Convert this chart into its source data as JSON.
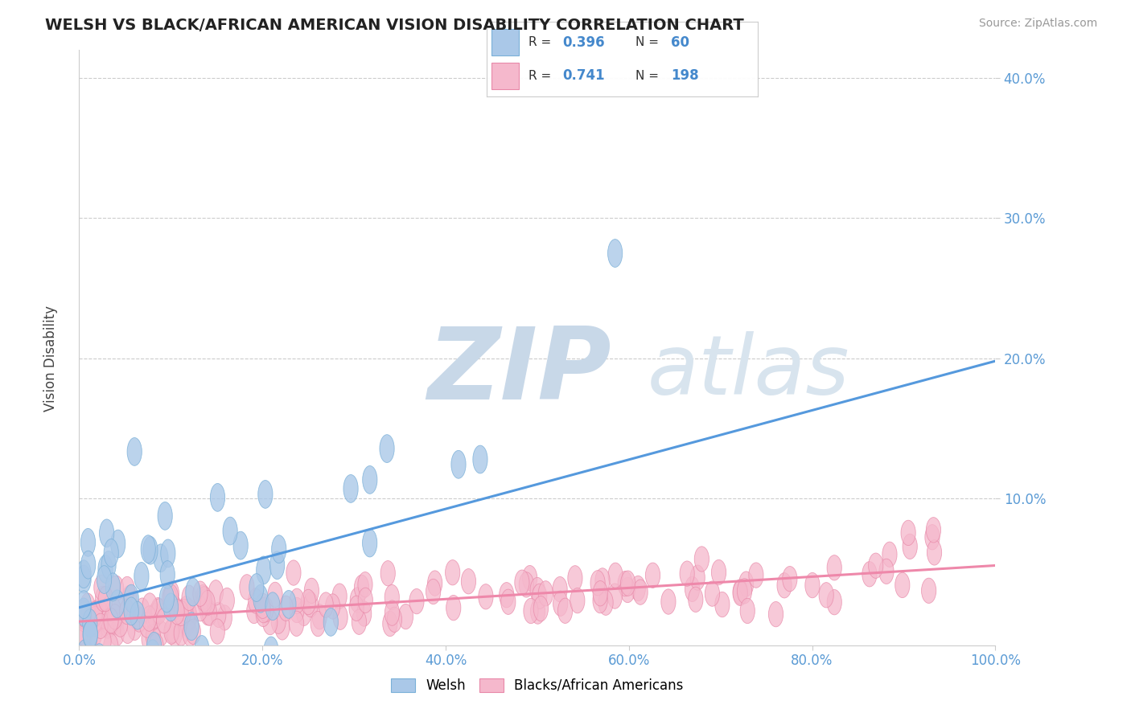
{
  "title": "WELSH VS BLACK/AFRICAN AMERICAN VISION DISABILITY CORRELATION CHART",
  "source": "Source: ZipAtlas.com",
  "ylabel": "Vision Disability",
  "x_min": 0.0,
  "x_max": 1.0,
  "y_min": -0.005,
  "y_max": 0.42,
  "welsh_R": 0.396,
  "welsh_N": 60,
  "black_R": 0.741,
  "black_N": 198,
  "welsh_color": "#aac8e8",
  "welsh_edge_color": "#7ab0d8",
  "black_color": "#f5b8cc",
  "black_edge_color": "#e888a8",
  "background_color": "#ffffff",
  "watermark_zip": "ZIP",
  "watermark_atlas": "atlas",
  "watermark_zip_color": "#c8d8e8",
  "watermark_atlas_color": "#d8e4ee",
  "legend_R_color": "#4488cc",
  "legend_N_color": "#4488cc",
  "title_color": "#222222",
  "grid_color": "#cccccc",
  "tick_label_color": "#5b9bd5",
  "xtick_labels": [
    "0.0%",
    "20.0%",
    "40.0%",
    "60.0%",
    "80.0%",
    "100.0%"
  ],
  "xtick_vals": [
    0.0,
    0.2,
    0.4,
    0.6,
    0.8,
    1.0
  ],
  "ytick_labels": [
    "10.0%",
    "20.0%",
    "30.0%",
    "40.0%"
  ],
  "ytick_vals": [
    0.1,
    0.2,
    0.3,
    0.4
  ],
  "welsh_line": {
    "x0": 0.0,
    "y0": 0.022,
    "x1": 1.0,
    "y1": 0.198
  },
  "black_line": {
    "x0": 0.0,
    "y0": 0.012,
    "x1": 1.0,
    "y1": 0.052
  },
  "legend_labels": [
    "Welsh",
    "Blacks/African Americans"
  ],
  "welsh_line_color": "#5599dd",
  "black_line_color": "#ee88aa"
}
